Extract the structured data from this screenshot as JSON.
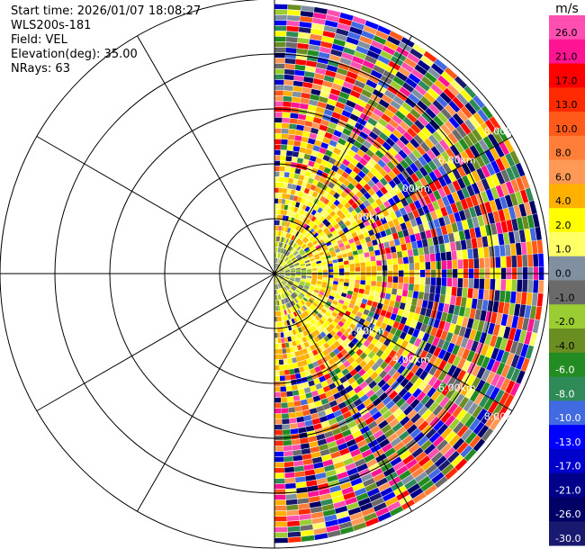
{
  "header": {
    "start_time": "Start time: 2026/01/07 18:08:27",
    "instrument": "WLS200s-181",
    "field": "Field: VEL",
    "elevation": "Elevation(deg): 35.00",
    "nrays": "NRays: 63"
  },
  "chart_data": {
    "type": "heatmap",
    "projection": "polar-ppi",
    "title": "",
    "field": "VEL",
    "units": "m/s",
    "elevation_deg": 35.0,
    "nrays": 63,
    "azimuth_range_deg": [
      0,
      180
    ],
    "ring_labels": [
      "2.00km",
      "4.00km",
      "6.00km",
      "8.00km"
    ],
    "ring_count": 5,
    "spoke_spacing_deg": 30,
    "colorbar": {
      "label": "m/s",
      "tick_labels": [
        "26.0",
        "21.0",
        "17.0",
        "13.0",
        "10.0",
        "8.0",
        "6.0",
        "4.0",
        "2.0",
        "1.0",
        "0.0",
        "-1.0",
        "-2.0",
        "-4.0",
        "-6.0",
        "-8.0",
        "-10.0",
        "-13.0",
        "-17.0",
        "-21.0",
        "-26.0",
        "-30.0"
      ],
      "colors": [
        "#ff4fb0",
        "#ff1493",
        "#ff0000",
        "#ff2a00",
        "#ff5a1a",
        "#ff7f3a",
        "#ff9955",
        "#ffb000",
        "#ffff00",
        "#ffff66",
        "#8090a0",
        "#6a6a6a",
        "#9acd32",
        "#6b8e23",
        "#228b22",
        "#2e8b57",
        "#4169e1",
        "#0000ff",
        "#0000cd",
        "#00008b",
        "#000066",
        "#191970"
      ]
    }
  }
}
